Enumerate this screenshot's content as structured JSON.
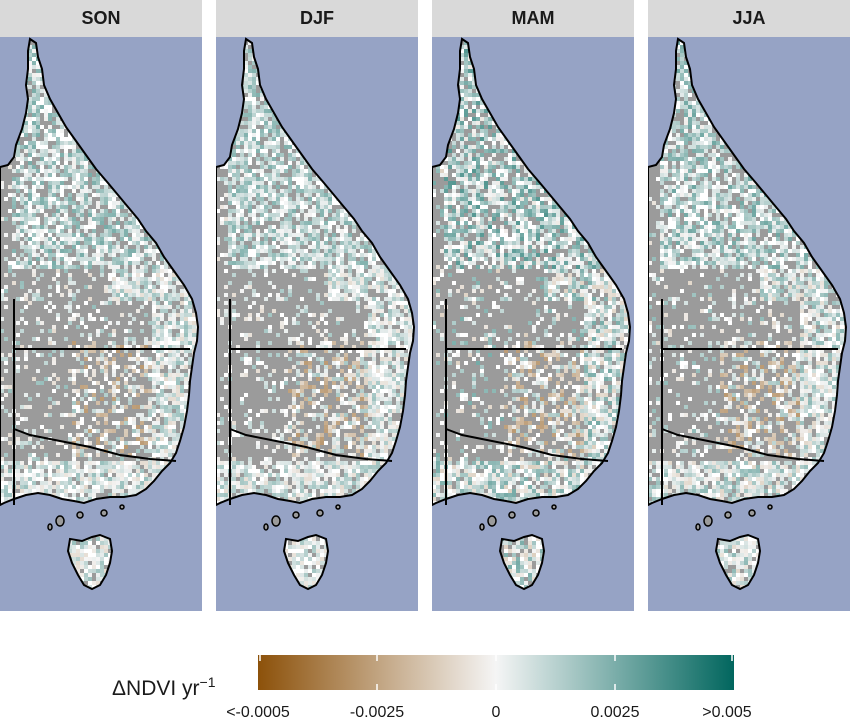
{
  "panels": [
    {
      "label": "SON"
    },
    {
      "label": "DJF"
    },
    {
      "label": "MAM"
    },
    {
      "label": "JJA"
    }
  ],
  "colors": {
    "ocean": "#96a3c5",
    "land_nodata": "#9b9b9b",
    "strip": "#d9d9d9",
    "negative": "#8c510a",
    "neutral": "#f5f5f5",
    "positive": "#01665e",
    "coastline": "#000000"
  },
  "legend": {
    "title": "ΔNDVI yr",
    "title_exponent": "−1",
    "ticks": [
      "<-0.0005",
      "-0.0025",
      "0",
      "0.0025",
      ">0.005"
    ]
  }
}
